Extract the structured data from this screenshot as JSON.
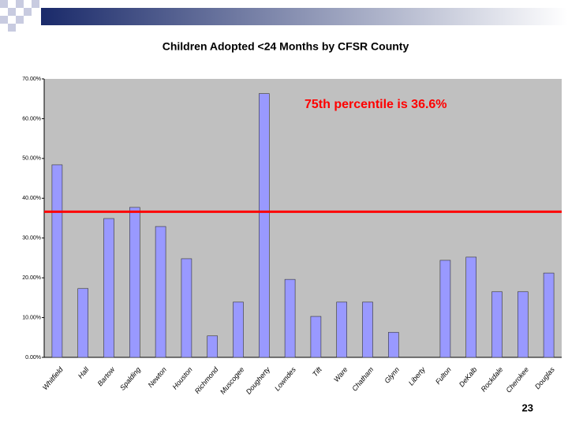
{
  "chart_data": {
    "type": "bar",
    "title": "Children Adopted <24 Months by CFSR County",
    "categories": [
      "Whitfield",
      "Hall",
      "Bartow",
      "Spalding",
      "Newton",
      "Houston",
      "Richmond",
      "Muscogee",
      "Dougherty",
      "Lowndes",
      "Tift",
      "Ware",
      "Chatham",
      "Glynn",
      "Liberty",
      "Fulton",
      "DeKalb",
      "Rockdale",
      "Cherokee",
      "Douglas"
    ],
    "values": [
      48.4,
      17.3,
      34.9,
      37.7,
      32.9,
      24.8,
      5.4,
      13.9,
      66.3,
      19.6,
      10.3,
      13.9,
      13.9,
      6.3,
      0,
      24.4,
      25.2,
      16.5,
      16.5,
      21.2
    ],
    "color": "#9999ff",
    "ylim": [
      0,
      70
    ],
    "yticks": [
      {
        "value": 0,
        "label": "0.00%"
      },
      {
        "value": 10,
        "label": "10.00%"
      },
      {
        "value": 20,
        "label": "20.00%"
      },
      {
        "value": 30,
        "label": "30.00%"
      },
      {
        "value": 40,
        "label": "40.00%"
      },
      {
        "value": 50,
        "label": "50.00%"
      },
      {
        "value": 60,
        "label": "60.00%"
      },
      {
        "value": 70,
        "label": "70.00%"
      }
    ],
    "grid": false,
    "reference_line": {
      "value": 36.6,
      "color": "#ff0000",
      "label": "75th percentile is 36.6%"
    }
  },
  "page_number": "23"
}
